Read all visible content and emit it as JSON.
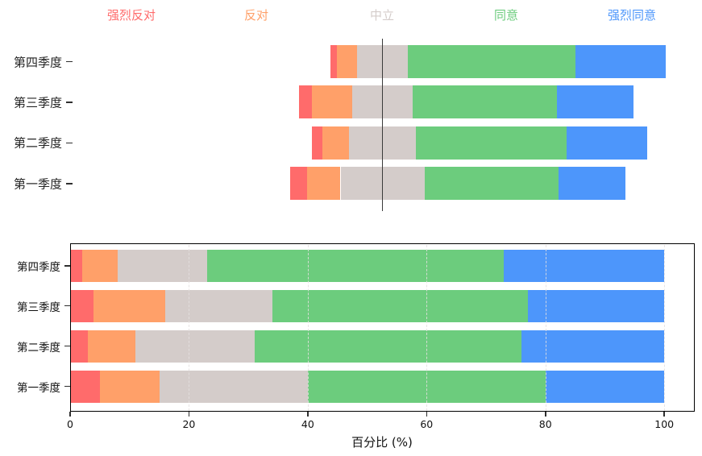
{
  "figure": {
    "background": "#ffffff"
  },
  "chart_data": [
    {
      "type": "diverging-bar",
      "orientation": "horizontal",
      "align": "neutral-center",
      "categories": [
        "第四季度",
        "第三季度",
        "第二季度",
        "第一季度"
      ],
      "series": [
        {
          "name": "强烈反对",
          "color": "#ff6b6b",
          "values": [
            2,
            4,
            3,
            5
          ]
        },
        {
          "name": "反对",
          "color": "#ffa069",
          "values": [
            6,
            12,
            8,
            10
          ]
        },
        {
          "name": "中立",
          "color": "#d4ccca",
          "values": [
            15,
            18,
            20,
            25
          ]
        },
        {
          "name": "同意",
          "color": "#6ccc7d",
          "values": [
            50,
            43,
            45,
            40
          ]
        },
        {
          "name": "强烈同意",
          "color": "#4d96fb",
          "values": [
            27,
            23,
            24,
            20
          ]
        }
      ],
      "legend_position": "top",
      "center_line_color": "#3a3a3a",
      "grid": false,
      "frame": false
    },
    {
      "type": "bar-stacked-h",
      "categories": [
        "第四季度",
        "第三季度",
        "第二季度",
        "第一季度"
      ],
      "series": [
        {
          "name": "强烈反对",
          "color": "#ff6b6b",
          "values": [
            2,
            4,
            3,
            5
          ]
        },
        {
          "name": "反对",
          "color": "#ffa069",
          "values": [
            6,
            12,
            8,
            10
          ]
        },
        {
          "name": "中立",
          "color": "#d4ccca",
          "values": [
            15,
            18,
            20,
            25
          ]
        },
        {
          "name": "同意",
          "color": "#6ccc7d",
          "values": [
            50,
            43,
            45,
            40
          ]
        },
        {
          "name": "强烈同意",
          "color": "#4d96fb",
          "values": [
            27,
            23,
            24,
            20
          ]
        }
      ],
      "xlabel": "百分比 (%)",
      "xticks": [
        0,
        20,
        40,
        60,
        80,
        100
      ],
      "xlim": [
        0,
        105
      ],
      "grid": "dashed-vertical",
      "frame": true,
      "legend_position": "none"
    }
  ]
}
